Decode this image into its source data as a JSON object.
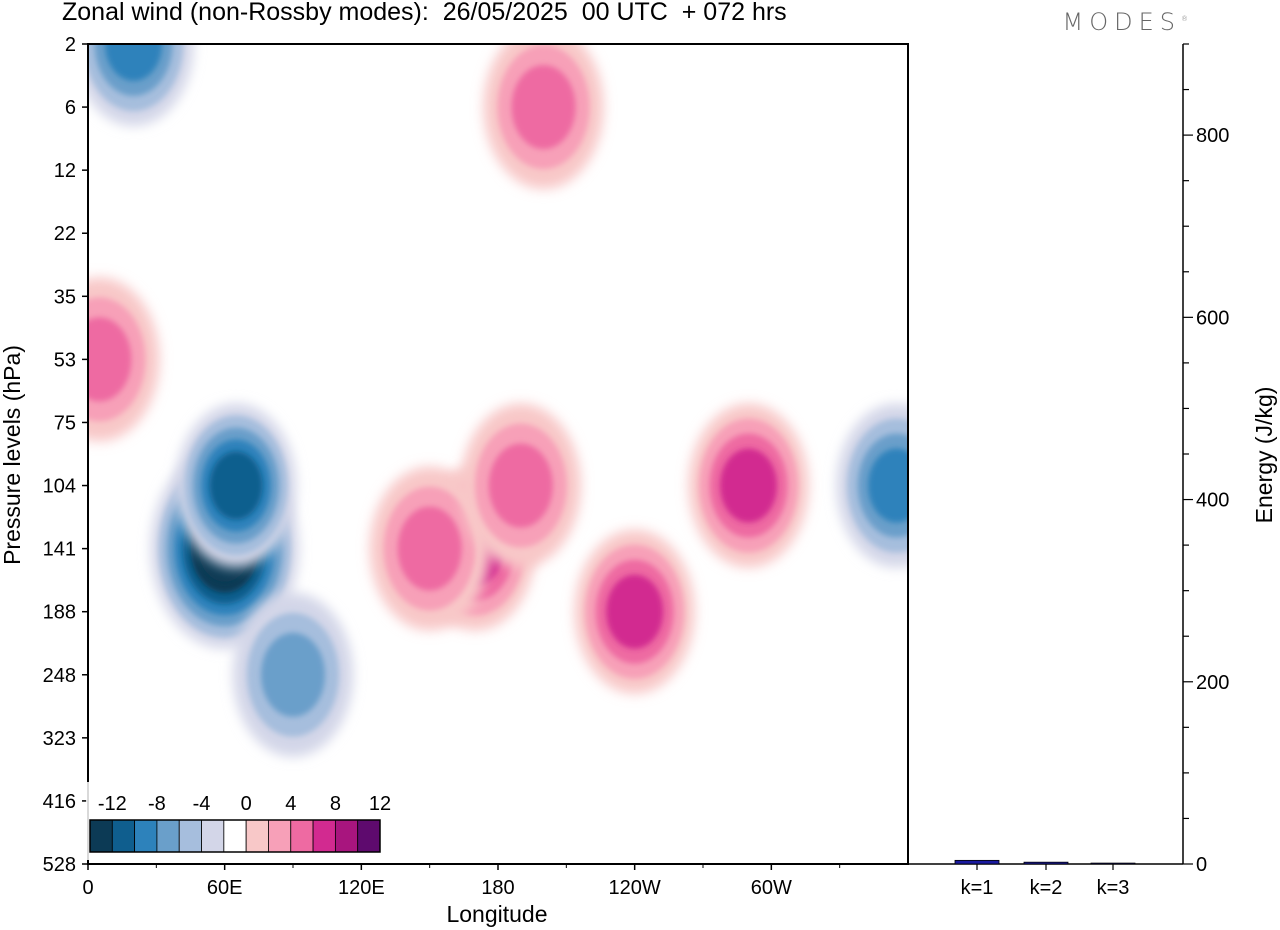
{
  "title": "Zonal wind (non-Rossby modes):  26/05/2025  00 UTC  + 072 hrs",
  "logo": "MODES",
  "colors": {
    "scale": [
      "#0c3a55",
      "#0f5e8e",
      "#2d82bb",
      "#6a9fca",
      "#a6bedd",
      "#d3d6e8",
      "#ffffff",
      "#f8c8c8",
      "#f7a0b8",
      "#ee6aa2",
      "#d22a90",
      "#a8157e",
      "#5e0a6e"
    ],
    "frame": "#000000",
    "energy_bar": "#1a1aa0"
  },
  "chart_data": [
    {
      "type": "heatmap",
      "title": "Zonal wind (non-Rossby modes):  26/05/2025  00 UTC  + 072 hrs",
      "xlabel": "Longitude",
      "ylabel": "Pressure levels (hPa)",
      "x_ticks": [
        "0",
        "60E",
        "120E",
        "180",
        "120W",
        "60W"
      ],
      "y_ticks": [
        "2",
        "6",
        "12",
        "22",
        "35",
        "53",
        "75",
        "104",
        "141",
        "188",
        "248",
        "323",
        "416",
        "528"
      ],
      "colorbar_labels": [
        "-12",
        "-8",
        "-4",
        "0",
        "4",
        "8",
        "12"
      ],
      "features": [
        {
          "lon": 60,
          "level": "141",
          "value": -14
        },
        {
          "lon": 65,
          "level": "104",
          "value": -10
        },
        {
          "lon": 170,
          "level": "141",
          "value": 8
        },
        {
          "lon": 150,
          "level": "141",
          "value": 6
        },
        {
          "lon": 240,
          "level": "188",
          "value": 8
        },
        {
          "lon": 290,
          "level": "104",
          "value": 9
        },
        {
          "lon": 190,
          "level": "104",
          "value": 6
        },
        {
          "lon": 200,
          "level": "6",
          "value": 6
        },
        {
          "lon": 5,
          "level": "53",
          "value": 6
        },
        {
          "lon": 355,
          "level": "104",
          "value": -8
        },
        {
          "lon": 20,
          "level": "2",
          "value": -8
        },
        {
          "lon": 90,
          "level": "248",
          "value": -6
        }
      ]
    },
    {
      "type": "bar",
      "categories": [
        "k=1",
        "k=2",
        "k=3"
      ],
      "values": [
        4,
        2,
        1
      ],
      "ylabel": "Energy (J/kg)",
      "ylim": [
        0,
        900
      ],
      "y_ticks": [
        0,
        200,
        400,
        600,
        800
      ]
    }
  ]
}
